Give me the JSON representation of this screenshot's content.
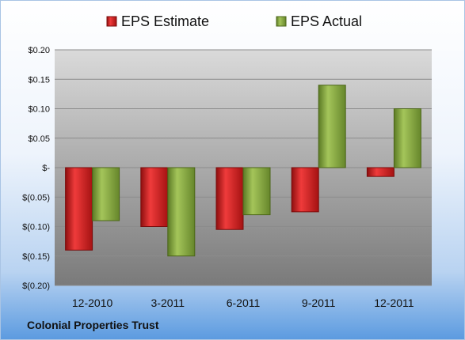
{
  "company": "Colonial Properties Trust",
  "chart_data": {
    "type": "bar",
    "title": "",
    "xlabel": "",
    "ylabel": "",
    "categories": [
      "12-2010",
      "3-2011",
      "6-2011",
      "9-2011",
      "12-2011"
    ],
    "series": [
      {
        "name": "EPS Estimate",
        "color": "#d21a1a",
        "values": [
          -0.14,
          -0.1,
          -0.105,
          -0.075,
          -0.015
        ]
      },
      {
        "name": "EPS Actual",
        "color": "#7fa23a",
        "values": [
          -0.09,
          -0.15,
          -0.08,
          0.14,
          0.1
        ]
      }
    ],
    "ylim": [
      -0.2,
      0.2
    ],
    "yticks": [
      0.2,
      0.15,
      0.1,
      0.05,
      0.0,
      -0.05,
      -0.1,
      -0.15,
      -0.2
    ],
    "ytick_labels": [
      "$0.20",
      "$0.15",
      "$0.10",
      "$0.05",
      "$-",
      "$(0.05)",
      "$(0.10)",
      "$(0.15)",
      "$(0.20)"
    ],
    "grid": true,
    "legend": "top"
  }
}
